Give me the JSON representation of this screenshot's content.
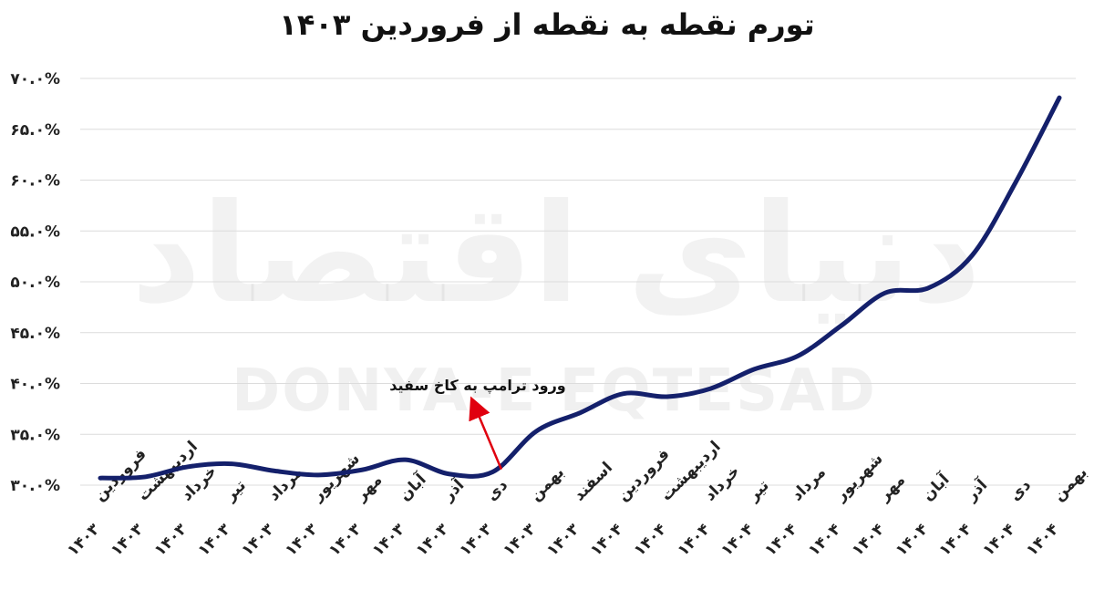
{
  "chart_data": {
    "type": "line",
    "title": "تورم نقطه به نقطه از فروردین ۱۴۰۳",
    "watermark": {
      "text_fa": "دنیای اقتصاد",
      "text_en": "DONYA-E EQTESAD"
    },
    "ylim": [
      30,
      70
    ],
    "yticks": [
      "۳۰.۰%",
      "۳۵.۰%",
      "۴۰.۰%",
      "۴۵.۰%",
      "۵۰.۰%",
      "۵۵.۰%",
      "۶۰.۰%",
      "۶۵.۰%",
      "۷۰.۰%"
    ],
    "ytick_values": [
      30,
      35,
      40,
      45,
      50,
      55,
      60,
      65,
      70
    ],
    "grid": true,
    "categories": [
      [
        "فروردین",
        "۱۴۰۳"
      ],
      [
        "اردیبهشت",
        "۱۴۰۳"
      ],
      [
        "خرداد",
        "۱۴۰۳"
      ],
      [
        "تیر",
        "۱۴۰۳"
      ],
      [
        "مرداد",
        "۱۴۰۳"
      ],
      [
        "شهریور",
        "۱۴۰۳"
      ],
      [
        "مهر",
        "۱۴۰۳"
      ],
      [
        "آبان",
        "۱۴۰۳"
      ],
      [
        "آذر",
        "۱۴۰۳"
      ],
      [
        "دی",
        "۱۴۰۳"
      ],
      [
        "بهمن",
        "۱۴۰۳"
      ],
      [
        "اسفند",
        "۱۴۰۳"
      ],
      [
        "فروردین",
        "۱۴۰۴"
      ],
      [
        "اردیبهشت",
        "۱۴۰۴"
      ],
      [
        "خرداد",
        "۱۴۰۴"
      ],
      [
        "تیر",
        "۱۴۰۴"
      ],
      [
        "مرداد",
        "۱۴۰۴"
      ],
      [
        "شهریور",
        "۱۴۰۴"
      ],
      [
        "مهر",
        "۱۴۰۴"
      ],
      [
        "آبان",
        "۱۴۰۴"
      ],
      [
        "آذر",
        "۱۴۰۴"
      ],
      [
        "دی",
        "۱۴۰۴"
      ],
      [
        "بهمن",
        "۱۴۰۴"
      ]
    ],
    "series": [
      {
        "color": "#14206b",
        "values": [
          30.7,
          30.8,
          31.8,
          32.1,
          31.4,
          31.0,
          31.5,
          32.5,
          31.1,
          31.3,
          35.3,
          37.1,
          39.0,
          38.7,
          39.5,
          41.4,
          42.7,
          45.7,
          48.9,
          49.4,
          52.6,
          59.8,
          68.1
        ]
      }
    ],
    "annotations": [
      {
        "text": "ورود ترامپ به کاخ سفید",
        "x_index": 9.2,
        "y": 31.2,
        "arrow_color": "#e0000f"
      }
    ]
  }
}
